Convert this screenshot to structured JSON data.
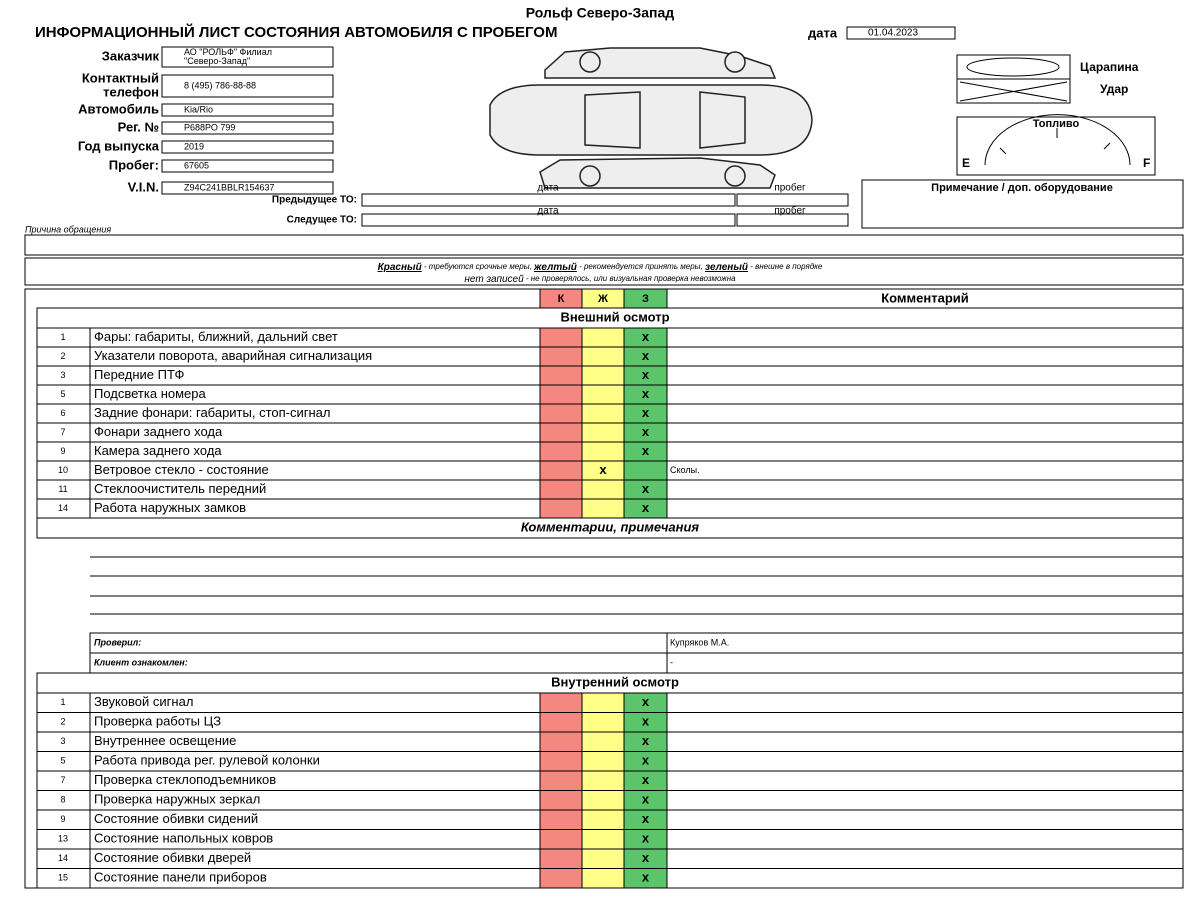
{
  "header": {
    "company": "Рольф Северо-Запад",
    "title": "ИНФОРМАЦИОННЫЙ ЛИСТ СОСТОЯНИЯ АВТОМОБИЛЯ С ПРОБЕГОМ",
    "date_label": "дата",
    "date": "01.04.2023"
  },
  "fields": [
    {
      "label": [
        "Заказчик"
      ],
      "value": [
        "АО \"РОЛЬФ\" Филиал",
        "\"Северо-Запад\""
      ]
    },
    {
      "label": [
        "Контактный",
        "телефон"
      ],
      "value": [
        "8 (495) 786-88-88"
      ]
    },
    {
      "label": [
        "Автомобиль"
      ],
      "value": [
        "Kia/Rio"
      ]
    },
    {
      "label": [
        "Рег. №"
      ],
      "value": [
        "Р688РО 799"
      ]
    },
    {
      "label": [
        "Год выпуска"
      ],
      "value": [
        "2019"
      ]
    },
    {
      "label": [
        "Пробег:"
      ],
      "value": [
        "67605"
      ]
    },
    {
      "label": [
        "V.I.N."
      ],
      "value": [
        "Z94C241BBLR154637"
      ]
    }
  ],
  "legend_marks": {
    "scratch": "Царапина",
    "dent": "Удар"
  },
  "fuel": {
    "title": "Топливо",
    "empty": "E",
    "full": "F"
  },
  "service": {
    "date_label": "дата",
    "mileage_label": "пробег",
    "previous": "Предыдущее ТО:",
    "next": "Следущее ТО:"
  },
  "note": "Примечание / доп. оборудование",
  "reason_label": "Причина обращения",
  "color_legend": {
    "red": "Красный",
    "red_text": " - требуются срочные меры, ",
    "yellow": "желтый",
    "yellow_text": " - рекомендуется принять меры, ",
    "green": "зеленый",
    "green_text": " - внешне в порядке",
    "none": "нет записей",
    "none_text": " - не проверялось, или визуальная проверка невозможна"
  },
  "table": {
    "columns": [
      "К",
      "Ж",
      "З",
      "Комментарий"
    ],
    "sections": [
      {
        "title": "Внешний осмотр",
        "rows": [
          {
            "num": 1,
            "item": "Фары: габариты, ближний, дальний свет",
            "mark": "x",
            "column": "З"
          },
          {
            "num": 2,
            "item": "Указатели поворота, аварийная сигнализация",
            "mark": "x",
            "column": "З"
          },
          {
            "num": 3,
            "item": "Передние ПТФ",
            "mark": "x",
            "column": "З"
          },
          {
            "num": 5,
            "item": "Подсветка номера",
            "mark": "x",
            "column": "З"
          },
          {
            "num": 6,
            "item": "Задние фонари: габариты, стоп-сигнал",
            "mark": "x",
            "column": "З"
          },
          {
            "num": 7,
            "item": "Фонари заднего хода",
            "mark": "x",
            "column": "З"
          },
          {
            "num": 9,
            "item": "Камера заднего хода",
            "mark": "x",
            "column": "З"
          },
          {
            "num": 10,
            "item": "Ветровое стекло - состояние",
            "mark": "x",
            "column": "Ж",
            "comment": "Сколы."
          },
          {
            "num": 11,
            "item": "Стеклоочиститель передний",
            "mark": "x",
            "column": "З"
          },
          {
            "num": 14,
            "item": "Работа наружных замков",
            "mark": "x",
            "column": "З"
          }
        ]
      },
      {
        "title": "Внутренний осмотр",
        "rows": [
          {
            "num": 1,
            "item": "Звуковой сигнал",
            "mark": "x",
            "column": "З"
          },
          {
            "num": 2,
            "item": "Проверка работы ЦЗ",
            "mark": "x",
            "column": "З"
          },
          {
            "num": 3,
            "item": "Внутреннее освещение",
            "mark": "x",
            "column": "З"
          },
          {
            "num": 5,
            "item": "Работа привода рег. рулевой колонки",
            "mark": "x",
            "column": "З"
          },
          {
            "num": 7,
            "item": "Проверка стеклоподъемников",
            "mark": "x",
            "column": "З"
          },
          {
            "num": 8,
            "item": "Проверка наружных зеркал",
            "mark": "x",
            "column": "З"
          },
          {
            "num": 9,
            "item": "Состояние обивки сидений",
            "mark": "x",
            "column": "З"
          },
          {
            "num": 13,
            "item": "Состояние напольных ковров",
            "mark": "x",
            "column": "З"
          },
          {
            "num": 14,
            "item": "Состояние обивки дверей",
            "mark": "x",
            "column": "З"
          },
          {
            "num": 15,
            "item": "Состояние панели приборов",
            "mark": "x",
            "column": "З"
          }
        ]
      }
    ],
    "comments_title": "Комментарии, примечания",
    "checked_label": "Проверил:",
    "checked_by": "Купряков М.А.",
    "client_label": "Клиент ознакомлен:",
    "client_value": "-"
  }
}
